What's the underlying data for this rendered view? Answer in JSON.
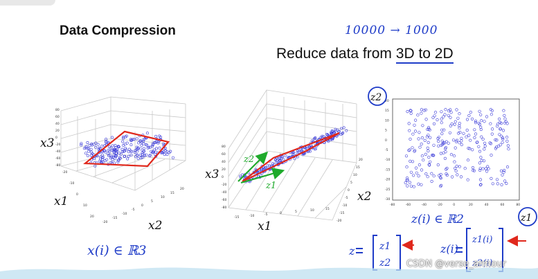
{
  "slide": {
    "title": "Data Compression",
    "subtitle_prefix": "Reduce data from ",
    "subtitle_emph": "3D to 2D"
  },
  "annotations": {
    "top_note": "10000 → 1000",
    "x_in_R3": "x(i) ∈ ℝ3",
    "z_in_R2": "z(i) ∈ ℝ2",
    "z_vector": "z = [z1 z2]",
    "z_i_vector": "z(i) = [z1(i) z2(i)]",
    "z1_circle": "z1",
    "z2_circle": "z2",
    "green_z1": "z1",
    "green_z2": "z2"
  },
  "axes_labels": {
    "x1": "x1",
    "x2": "x2",
    "x3": "x3"
  },
  "watermark": "CSDN @verse_armour",
  "colors": {
    "hand_blue": "#1f3cc8",
    "plane_red": "#e0281c",
    "arrow_green": "#1faa2c",
    "point_blue": "#3b3bd8"
  },
  "chart_data": [
    {
      "type": "scatter",
      "title": "",
      "subtitle": "3D point cloud with fitted plane",
      "z_ticks": [
        "80",
        "60",
        "40",
        "20",
        "0",
        "-20",
        "-40",
        "-60",
        "-80"
      ],
      "y_ticks": [
        "-20",
        "-10",
        "0",
        "10",
        "20"
      ],
      "x_ticks": [
        "-20",
        "-15",
        "-10",
        "-5",
        "0",
        "5",
        "10",
        "15",
        "20"
      ]
    },
    {
      "type": "scatter",
      "title": "",
      "subtitle": "rotated view showing data near a plane",
      "z_ticks": [
        "80",
        "60",
        "40",
        "20",
        "0",
        "-20",
        "-40",
        "-60",
        "-80"
      ],
      "x_ticks": [
        "-15",
        "-10",
        "-5",
        "0",
        "5",
        "10",
        "15"
      ],
      "y_ticks": [
        "-20",
        "-15",
        "-10",
        "-5",
        "0",
        "5",
        "10",
        "15",
        "20"
      ]
    },
    {
      "type": "scatter",
      "title": "",
      "subtitle": "projected 2D data z1 vs z2",
      "xlim": [
        -80,
        80
      ],
      "ylim": [
        -30,
        20
      ],
      "x_ticks": [
        "-80",
        "-60",
        "-40",
        "-20",
        "0",
        "20",
        "40",
        "60",
        "80"
      ],
      "y_ticks": [
        "20",
        "15",
        "10",
        "5",
        "0",
        "-5",
        "-10",
        "-15",
        "-20",
        "-25",
        "-30"
      ]
    }
  ]
}
